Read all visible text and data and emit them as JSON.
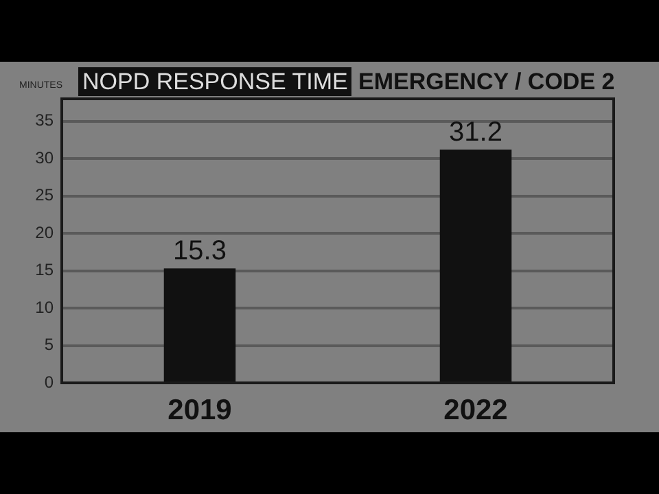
{
  "chart_data": {
    "type": "bar",
    "title": "NOPD RESPONSE TIME",
    "subtitle": "EMERGENCY / CODE 2",
    "ylabel": "MINUTES",
    "categories": [
      "2019",
      "2022"
    ],
    "values": [
      15.3,
      31.2
    ],
    "color": "#111111",
    "ylim": [
      0,
      38
    ],
    "yticks": [
      0,
      5,
      10,
      15,
      20,
      25,
      30,
      35
    ],
    "grid": "y",
    "data_labels": true,
    "legend": false
  }
}
